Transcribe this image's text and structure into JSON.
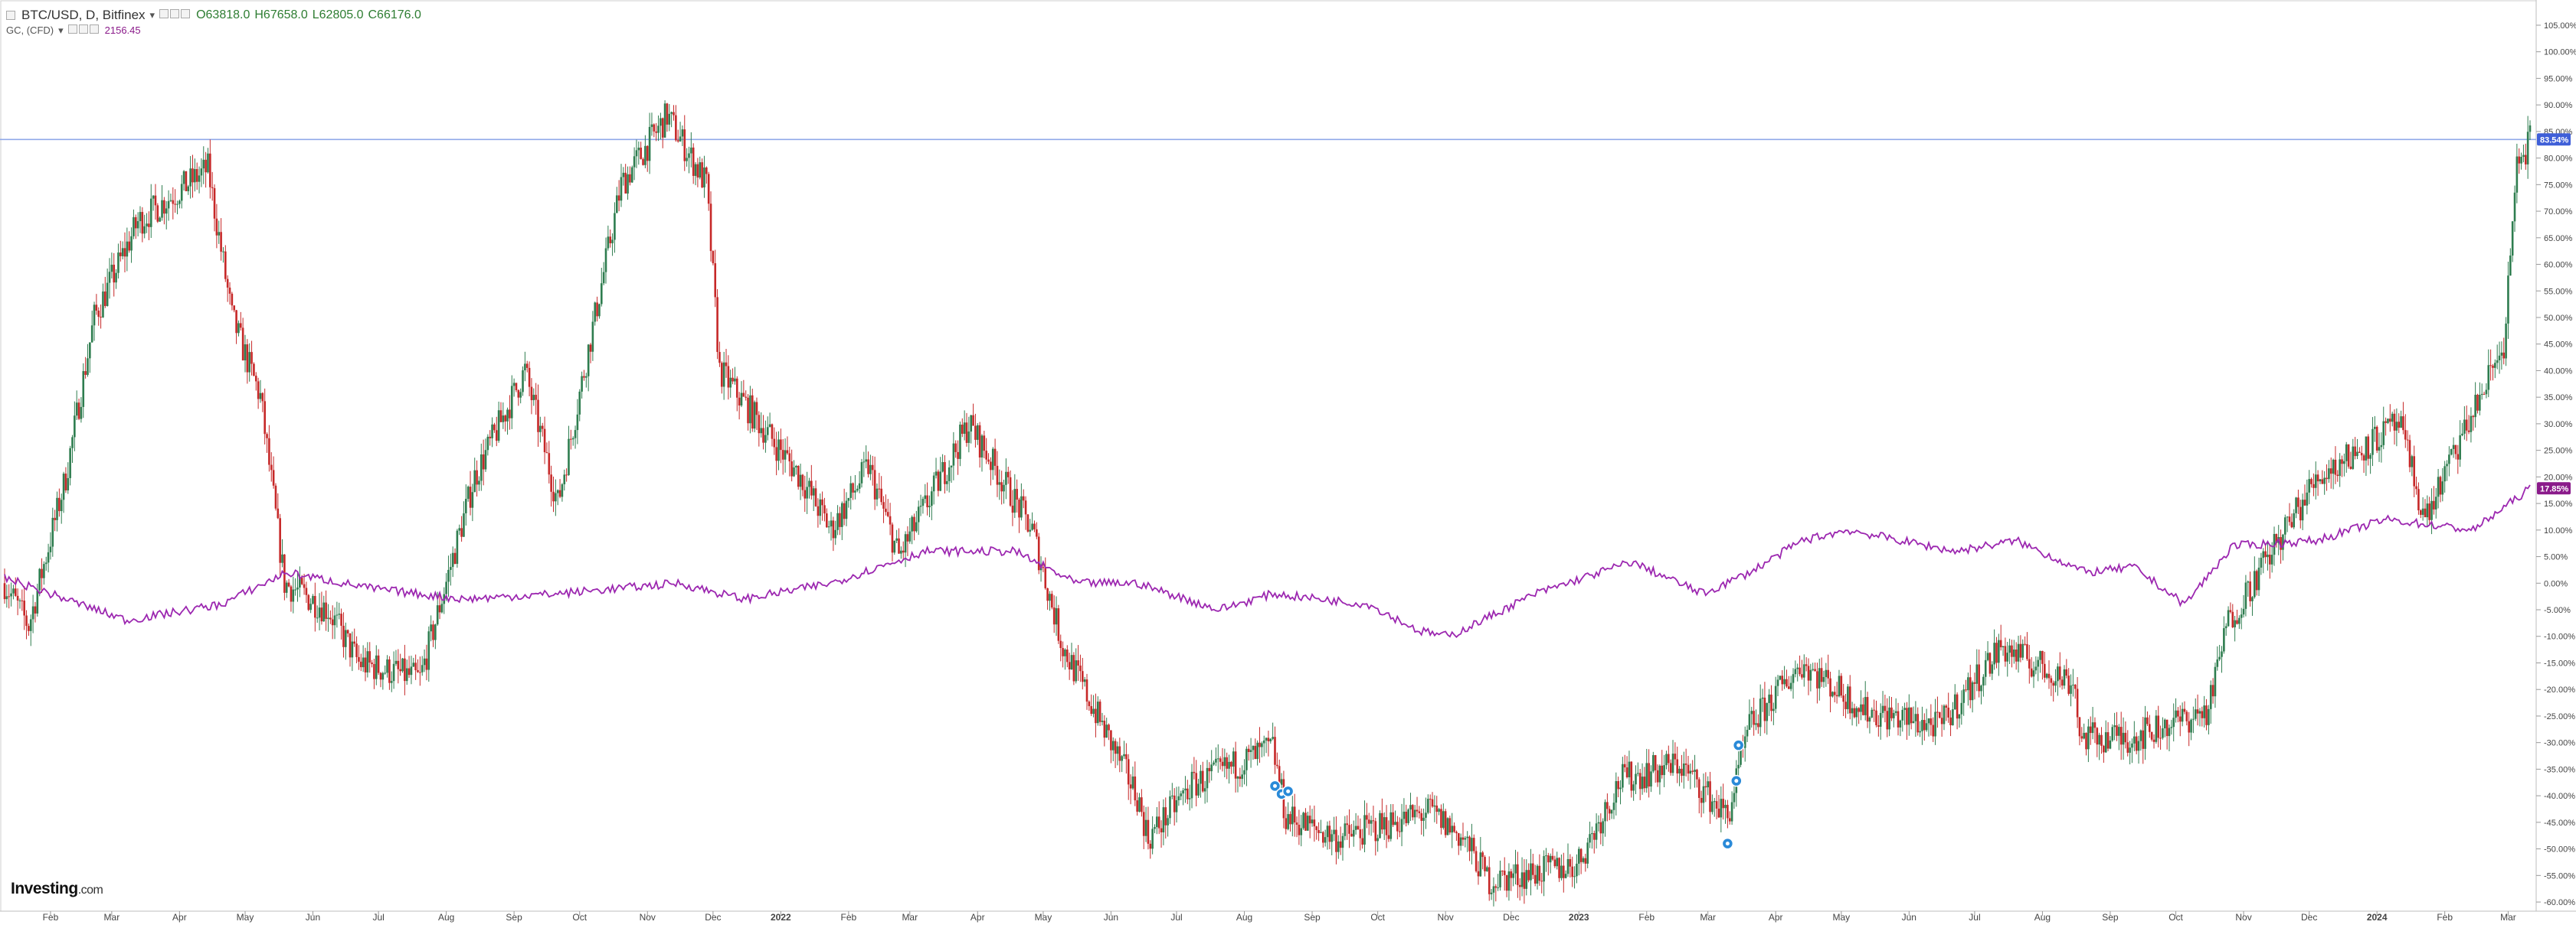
{
  "header": {
    "symbol_line": "BTC/USD, D, Bitfinex",
    "open": "O63818.0",
    "high": "H67658.0",
    "low": "L62805.0",
    "close": "C66176.0",
    "compare_symbol": "GC, (CFD)",
    "compare_value": "2156.45"
  },
  "logo": {
    "name": "Investing",
    "domain": ".com"
  },
  "colors": {
    "up_candle": "#2e7d4f",
    "down_candle": "#c62828",
    "compare_line": "#9c27b0",
    "crosshair": "#90a8e8",
    "btc_badge": "#3f5fd8",
    "gc_badge": "#8a1a8a"
  },
  "chart_data": {
    "type": "line",
    "title": "BTC/USD, D, Bitfinex",
    "xlabel": "",
    "ylabel": "",
    "ylim": [
      -61,
      106
    ],
    "y_tick_labels": [
      "105.00%",
      "100.00%",
      "95.00%",
      "90.00%",
      "85.00%",
      "80.00%",
      "75.00%",
      "70.00%",
      "65.00%",
      "60.00%",
      "55.00%",
      "50.00%",
      "45.00%",
      "40.00%",
      "35.00%",
      "30.00%",
      "25.00%",
      "20.00%",
      "15.00%",
      "10.00%",
      "5.00%",
      "0.00%",
      "-5.00%",
      "-10.00%",
      "-15.00%",
      "-20.00%",
      "-25.00%",
      "-30.00%",
      "-35.00%",
      "-40.00%",
      "-45.00%",
      "-50.00%",
      "-55.00%",
      "-60.00%"
    ],
    "y_tick_values": [
      105,
      100,
      95,
      90,
      85,
      80,
      75,
      70,
      65,
      60,
      55,
      50,
      45,
      40,
      35,
      30,
      25,
      20,
      15,
      10,
      5,
      0,
      -5,
      -10,
      -15,
      -20,
      -25,
      -30,
      -35,
      -40,
      -45,
      -50,
      -55,
      -60
    ],
    "x_tick_labels": [
      "Feb",
      "Mar",
      "Apr",
      "May",
      "Jun",
      "Jul",
      "Aug",
      "Sep",
      "Oct",
      "Nov",
      "Dec",
      "2022",
      "Feb",
      "Mar",
      "Apr",
      "May",
      "Jun",
      "Jul",
      "Aug",
      "Sep",
      "Oct",
      "Nov",
      "Dec",
      "2023",
      "Feb",
      "Mar",
      "Apr",
      "May",
      "Jun",
      "Jul",
      "Aug",
      "Sep",
      "Oct",
      "Nov",
      "Dec",
      "2024",
      "Feb",
      "Mar"
    ],
    "x_tick_dates": [
      "2021-02-01",
      "2021-03-01",
      "2021-04-01",
      "2021-05-01",
      "2021-06-01",
      "2021-07-01",
      "2021-08-01",
      "2021-09-01",
      "2021-10-01",
      "2021-11-01",
      "2021-12-01",
      "2022-01-01",
      "2022-02-01",
      "2022-03-01",
      "2022-04-01",
      "2022-05-01",
      "2022-06-01",
      "2022-07-01",
      "2022-08-01",
      "2022-09-01",
      "2022-10-01",
      "2022-11-01",
      "2022-12-01",
      "2023-01-01",
      "2023-02-01",
      "2023-03-01",
      "2023-04-01",
      "2023-05-01",
      "2023-06-01",
      "2023-07-01",
      "2023-08-01",
      "2023-09-01",
      "2023-10-01",
      "2023-11-01",
      "2023-12-01",
      "2024-01-01",
      "2024-02-01",
      "2024-03-01"
    ],
    "x_range": [
      "2021-01-11",
      "2024-03-11"
    ],
    "grid": false,
    "legend": "top-left",
    "current_labels": {
      "btc": "83.54%",
      "gc": "17.85%"
    },
    "series": [
      {
        "name": "BTC/USD, D, Bitfinex",
        "kind": "candlestick",
        "x": [
          "2021-01-11",
          "2021-01-22",
          "2021-02-08",
          "2021-02-21",
          "2021-03-13",
          "2021-04-14",
          "2021-04-25",
          "2021-05-08",
          "2021-05-19",
          "2021-06-08",
          "2021-06-22",
          "2021-07-20",
          "2021-08-14",
          "2021-09-06",
          "2021-09-21",
          "2021-10-20",
          "2021-11-10",
          "2021-11-28",
          "2021-12-04",
          "2022-01-10",
          "2022-01-24",
          "2022-02-10",
          "2022-02-24",
          "2022-03-28",
          "2022-04-26",
          "2022-05-10",
          "2022-06-13",
          "2022-06-18",
          "2022-07-08",
          "2022-08-14",
          "2022-08-20",
          "2022-09-13",
          "2022-10-25",
          "2022-11-09",
          "2022-11-21",
          "2022-12-31",
          "2023-01-20",
          "2023-02-16",
          "2023-03-10",
          "2023-03-20",
          "2023-04-13",
          "2023-05-12",
          "2023-06-15",
          "2023-07-13",
          "2023-08-16",
          "2023-08-18",
          "2023-09-11",
          "2023-10-16",
          "2023-10-24",
          "2023-12-05",
          "2024-01-11",
          "2024-01-23",
          "2024-02-28",
          "2024-03-05",
          "2024-03-11"
        ],
        "values": [
          0,
          -8,
          20,
          50,
          68,
          78,
          50,
          35,
          0,
          -5,
          -15,
          -18,
          20,
          40,
          15,
          75,
          88,
          75,
          40,
          20,
          10,
          22,
          5,
          30,
          10,
          -12,
          -40,
          -48,
          -38,
          -31,
          -44,
          -48,
          -43,
          -48,
          -56,
          -53,
          -37,
          -34,
          -44,
          -27,
          -15,
          -24,
          -27,
          -12,
          -19,
          -29,
          -29,
          -24,
          -8,
          20,
          30,
          12,
          45,
          78,
          83.5
        ]
      },
      {
        "name": "GC, (CFD)",
        "kind": "line",
        "x": [
          "2021-01-11",
          "2021-03-08",
          "2021-04-20",
          "2021-05-20",
          "2021-06-28",
          "2021-08-09",
          "2021-09-20",
          "2021-11-15",
          "2021-12-15",
          "2022-01-24",
          "2022-03-08",
          "2022-04-18",
          "2022-05-16",
          "2022-06-13",
          "2022-07-20",
          "2022-08-14",
          "2022-09-27",
          "2022-10-20",
          "2022-11-03",
          "2022-12-12",
          "2023-01-25",
          "2023-02-27",
          "2023-03-20",
          "2023-04-13",
          "2023-05-04",
          "2023-06-22",
          "2023-07-20",
          "2023-08-21",
          "2023-09-12",
          "2023-10-05",
          "2023-10-27",
          "2023-12-04",
          "2024-01-05",
          "2024-02-14",
          "2024-03-11"
        ],
        "values": [
          1,
          -7,
          -4,
          2,
          -1,
          -3,
          -2,
          0,
          -3,
          0,
          6,
          6,
          0,
          0,
          -5,
          -2,
          -4,
          -9,
          -10,
          -2,
          4,
          -2,
          2,
          8,
          10,
          6,
          8,
          2,
          3,
          -4,
          7,
          8,
          12,
          10,
          17.85
        ]
      }
    ],
    "event_markers": [
      "2022-08-15",
      "2022-08-18",
      "2022-08-21",
      "2023-03-10",
      "2023-03-14",
      "2023-03-15"
    ]
  }
}
